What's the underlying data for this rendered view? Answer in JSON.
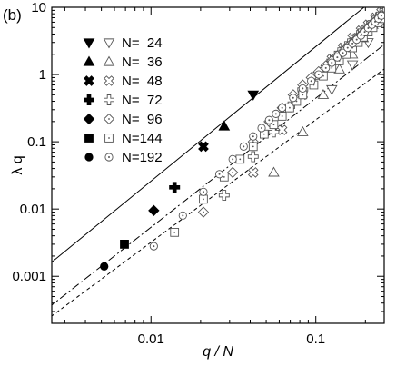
{
  "chart_data": {
    "type": "scatter",
    "panel_label": "(b)",
    "xlabel": "q / N",
    "ylabel": "λ q",
    "x_scale": "log",
    "y_scale": "log",
    "xlim": [
      0.0025,
      0.26
    ],
    "ylim": [
      0.0002,
      10
    ],
    "x_ticks": [
      {
        "value": 0.01,
        "label": "0.01"
      },
      {
        "value": 0.1,
        "label": "0.1"
      }
    ],
    "y_ticks": [
      {
        "value": 0.001,
        "label": "0.001"
      },
      {
        "value": 0.01,
        "label": "0.01"
      },
      {
        "value": 0.1,
        "label": "0.1"
      },
      {
        "value": 1,
        "label": "1"
      },
      {
        "value": 10,
        "label": "10"
      }
    ],
    "grid": false,
    "legend_position": "top-left",
    "legend": [
      {
        "label": "N=  24",
        "filled": "tri-down-filled",
        "open": "tri-down-open"
      },
      {
        "label": "N=  36",
        "filled": "tri-up-filled",
        "open": "tri-up-open"
      },
      {
        "label": "N=  48",
        "filled": "x-filled",
        "open": "x-open"
      },
      {
        "label": "N=  72",
        "filled": "plus-filled",
        "open": "plus-open"
      },
      {
        "label": "N=  96",
        "filled": "diamond-filled",
        "open": "diamond-open"
      },
      {
        "label": "N=144",
        "filled": "square-filled",
        "open": "square-open"
      },
      {
        "label": "N=192",
        "filled": "circle-filled",
        "open": "circle-open"
      }
    ],
    "filled_series": [
      {
        "marker": "tri-down-filled",
        "points": [
          [
            0.0417,
            0.5
          ]
        ]
      },
      {
        "marker": "tri-up-filled",
        "points": [
          [
            0.0278,
            0.17
          ]
        ]
      },
      {
        "marker": "x-filled",
        "points": [
          [
            0.0208,
            0.085
          ]
        ]
      },
      {
        "marker": "plus-filled",
        "points": [
          [
            0.0139,
            0.021
          ]
        ]
      },
      {
        "marker": "diamond-filled",
        "points": [
          [
            0.0104,
            0.0095
          ]
        ]
      },
      {
        "marker": "square-filled",
        "points": [
          [
            0.0069,
            0.003
          ]
        ]
      },
      {
        "marker": "circle-filled",
        "points": [
          [
            0.0052,
            0.0014
          ]
        ]
      }
    ],
    "open_series": [
      {
        "marker": "tri-down-open",
        "points": [
          [
            0.125,
            0.6
          ],
          [
            0.167,
            1.4
          ],
          [
            0.208,
            3.0
          ],
          [
            0.25,
            6.0
          ]
        ]
      },
      {
        "marker": "tri-up-open",
        "points": [
          [
            0.0556,
            0.035
          ],
          [
            0.0833,
            0.14
          ],
          [
            0.111,
            0.5
          ],
          [
            0.139,
            1.2
          ],
          [
            0.167,
            2.0
          ],
          [
            0.194,
            3.5
          ],
          [
            0.222,
            5.5
          ],
          [
            0.25,
            8.0
          ]
        ]
      },
      {
        "marker": "x-open",
        "points": [
          [
            0.0417,
            0.035
          ],
          [
            0.0625,
            0.15
          ],
          [
            0.0833,
            0.5
          ],
          [
            0.104,
            1.0
          ],
          [
            0.125,
            1.7
          ],
          [
            0.146,
            2.5
          ],
          [
            0.167,
            3.5
          ],
          [
            0.188,
            4.5
          ],
          [
            0.208,
            5.5
          ],
          [
            0.229,
            7.0
          ],
          [
            0.25,
            8.5
          ]
        ]
      },
      {
        "marker": "plus-open",
        "points": [
          [
            0.0278,
            0.016
          ],
          [
            0.0417,
            0.06
          ],
          [
            0.0556,
            0.14
          ],
          [
            0.0694,
            0.33
          ],
          [
            0.0833,
            0.6
          ],
          [
            0.0972,
            0.9
          ],
          [
            0.111,
            1.2
          ],
          [
            0.125,
            1.6
          ],
          [
            0.139,
            2.1
          ],
          [
            0.153,
            2.6
          ],
          [
            0.167,
            3.2
          ],
          [
            0.181,
            3.8
          ],
          [
            0.194,
            4.5
          ],
          [
            0.208,
            5.2
          ],
          [
            0.222,
            6.0
          ],
          [
            0.236,
            7.0
          ],
          [
            0.25,
            8.0
          ]
        ]
      },
      {
        "marker": "diamond-open",
        "points": [
          [
            0.0208,
            0.009
          ],
          [
            0.0313,
            0.035
          ],
          [
            0.0417,
            0.1
          ],
          [
            0.0521,
            0.2
          ],
          [
            0.0625,
            0.32
          ],
          [
            0.0729,
            0.5
          ],
          [
            0.0833,
            0.7
          ],
          [
            0.0938,
            0.9
          ],
          [
            0.104,
            1.1
          ],
          [
            0.115,
            1.35
          ],
          [
            0.125,
            1.6
          ],
          [
            0.135,
            1.9
          ],
          [
            0.146,
            2.2
          ],
          [
            0.156,
            2.6
          ],
          [
            0.167,
            3.0
          ],
          [
            0.177,
            3.4
          ],
          [
            0.188,
            3.9
          ],
          [
            0.198,
            4.4
          ],
          [
            0.208,
            5.0
          ],
          [
            0.219,
            5.6
          ],
          [
            0.229,
            6.2
          ],
          [
            0.24,
            6.9
          ],
          [
            0.25,
            7.6
          ]
        ]
      },
      {
        "marker": "square-open",
        "points": [
          [
            0.0139,
            0.0045
          ],
          [
            0.0208,
            0.014
          ],
          [
            0.0278,
            0.03
          ],
          [
            0.0347,
            0.055
          ],
          [
            0.0417,
            0.085
          ],
          [
            0.0486,
            0.13
          ],
          [
            0.0556,
            0.18
          ],
          [
            0.0625,
            0.24
          ],
          [
            0.0694,
            0.32
          ],
          [
            0.0764,
            0.4
          ],
          [
            0.0833,
            0.5
          ],
          [
            0.0972,
            0.7
          ],
          [
            0.111,
            0.95
          ],
          [
            0.125,
            1.25
          ],
          [
            0.139,
            1.6
          ],
          [
            0.153,
            2.0
          ],
          [
            0.167,
            2.5
          ],
          [
            0.181,
            3.0
          ],
          [
            0.194,
            3.6
          ],
          [
            0.208,
            4.3
          ],
          [
            0.222,
            5.0
          ],
          [
            0.236,
            5.9
          ],
          [
            0.25,
            6.8
          ]
        ]
      },
      {
        "marker": "circle-open",
        "points": [
          [
            0.0104,
            0.0028
          ],
          [
            0.0156,
            0.008
          ],
          [
            0.0208,
            0.018
          ],
          [
            0.026,
            0.033
          ],
          [
            0.0313,
            0.055
          ],
          [
            0.0365,
            0.085
          ],
          [
            0.0417,
            0.12
          ],
          [
            0.0469,
            0.16
          ],
          [
            0.0521,
            0.21
          ],
          [
            0.0573,
            0.26
          ],
          [
            0.0625,
            0.32
          ],
          [
            0.0729,
            0.45
          ],
          [
            0.0833,
            0.62
          ],
          [
            0.0938,
            0.8
          ],
          [
            0.104,
            1.0
          ],
          [
            0.115,
            1.25
          ],
          [
            0.125,
            1.5
          ],
          [
            0.135,
            1.8
          ],
          [
            0.146,
            2.1
          ],
          [
            0.156,
            2.5
          ],
          [
            0.167,
            2.9
          ],
          [
            0.177,
            3.3
          ],
          [
            0.188,
            3.8
          ],
          [
            0.198,
            4.3
          ],
          [
            0.208,
            4.9
          ],
          [
            0.219,
            5.5
          ],
          [
            0.229,
            6.1
          ],
          [
            0.24,
            6.8
          ],
          [
            0.25,
            7.5
          ]
        ]
      }
    ],
    "fit_lines": [
      {
        "style": "solid",
        "slope": 2.0,
        "coef": 260
      },
      {
        "style": "dash-dot",
        "slope": 1.92,
        "coef": 37
      },
      {
        "style": "dashed",
        "slope": 1.82,
        "coef": 14
      }
    ]
  }
}
